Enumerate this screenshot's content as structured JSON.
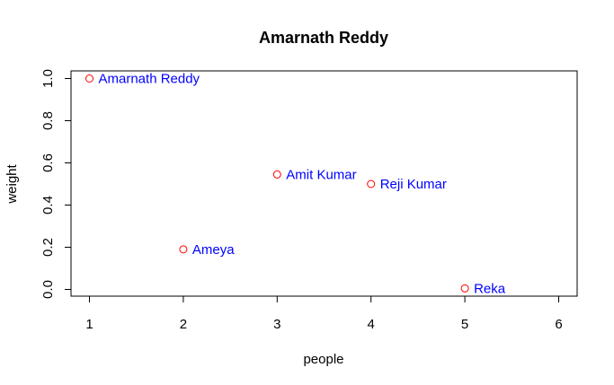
{
  "colors": {
    "marker": "#ff0000",
    "label": "#0000ff",
    "axis": "#000000"
  },
  "chart_data": {
    "type": "scatter",
    "title": "Amarnath Reddy",
    "xlabel": "people",
    "ylabel": "weight",
    "xlim": [
      1,
      6
    ],
    "ylim": [
      0,
      1
    ],
    "xticks": [
      "1",
      "2",
      "3",
      "4",
      "5",
      "6"
    ],
    "yticks": [
      "0.0",
      "0.2",
      "0.4",
      "0.6",
      "0.8",
      "1.0"
    ],
    "grid": false,
    "legend": "none",
    "points": [
      {
        "x": 1,
        "y": 1.0,
        "label": "Amarnath Reddy"
      },
      {
        "x": 2,
        "y": 0.19,
        "label": "Ameya"
      },
      {
        "x": 3,
        "y": 0.545,
        "label": "Amit Kumar"
      },
      {
        "x": 4,
        "y": 0.5,
        "label": "Reji Kumar"
      },
      {
        "x": 5,
        "y": 0.005,
        "label": "Reka"
      }
    ]
  }
}
